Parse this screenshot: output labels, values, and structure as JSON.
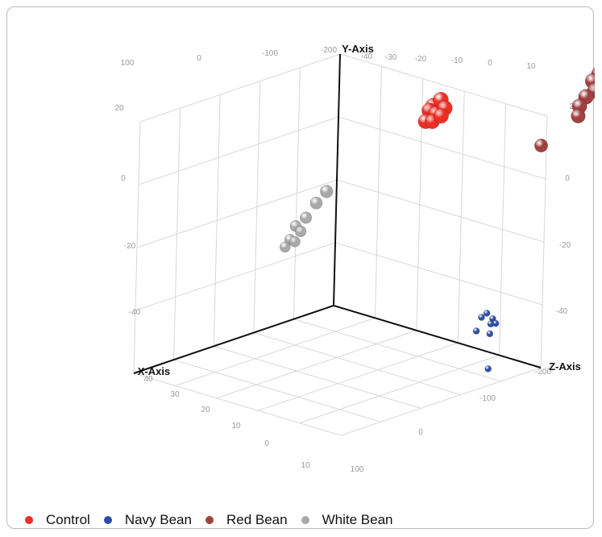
{
  "chart_data": {
    "type": "scatter",
    "projection": "3d",
    "axes": {
      "x": {
        "title": "X-Axis",
        "tick_labels": [
          "10",
          "0",
          "10",
          "20",
          "30",
          "40"
        ]
      },
      "y": {
        "title": "Y-Axis",
        "tick_labels": [
          "20",
          "0",
          "-20",
          "-40"
        ]
      },
      "z": {
        "title": "Z-Axis",
        "tick_labels": [
          "100",
          "0",
          "-100",
          "-200"
        ]
      },
      "back_top_tick_labels": [
        "100",
        "0",
        "-100",
        "-200",
        "-40",
        "-30",
        "-20",
        "-10",
        "0",
        "10"
      ],
      "side_tick_labels": [
        "20",
        "0",
        "-20",
        "-40"
      ]
    },
    "grid": true,
    "legend_position": "bottom-left",
    "series": [
      {
        "name": "Control",
        "color": "#ee2e24",
        "points": [
          {
            "x": 2,
            "y": 26,
            "z": 0
          },
          {
            "x": 0,
            "y": 27,
            "z": 1
          },
          {
            "x": 3,
            "y": 25,
            "z": -1
          },
          {
            "x": 1,
            "y": 23,
            "z": 2
          },
          {
            "x": -1,
            "y": 24,
            "z": 0
          },
          {
            "x": 4,
            "y": 22,
            "z": -2
          },
          {
            "x": 2,
            "y": 21,
            "z": 1
          },
          {
            "x": 0,
            "y": 22,
            "z": -1
          }
        ]
      },
      {
        "name": "Navy Bean",
        "color": "#2b4fa8",
        "points": [
          {
            "x": -5,
            "y": -40,
            "z": -75
          },
          {
            "x": -6,
            "y": -42,
            "z": -80
          },
          {
            "x": -4,
            "y": -41,
            "z": -72
          },
          {
            "x": -7,
            "y": -44,
            "z": -78
          },
          {
            "x": -5,
            "y": -43,
            "z": -85
          },
          {
            "x": -3,
            "y": -45,
            "z": -70
          },
          {
            "x": -6,
            "y": -47,
            "z": -74
          },
          {
            "x": -2,
            "y": -55,
            "z": -110
          }
        ]
      },
      {
        "name": "Red Bean",
        "color": "#a04040",
        "points": [
          {
            "x": -25,
            "y": 30,
            "z": -140
          },
          {
            "x": -24,
            "y": 28,
            "z": -135
          },
          {
            "x": -26,
            "y": 27,
            "z": -145
          },
          {
            "x": -23,
            "y": 26,
            "z": -150
          },
          {
            "x": -22,
            "y": 24,
            "z": -138
          },
          {
            "x": -20,
            "y": 22,
            "z": -142
          },
          {
            "x": -21,
            "y": 18,
            "z": -130
          },
          {
            "x": -15,
            "y": 10,
            "z": -100
          }
        ]
      },
      {
        "name": "White Bean",
        "color": "#a9a9a9",
        "points": [
          {
            "x": 22,
            "y": 5,
            "z": 60
          },
          {
            "x": 24,
            "y": 2,
            "z": 65
          },
          {
            "x": 26,
            "y": -2,
            "z": 70
          },
          {
            "x": 28,
            "y": -4,
            "z": 75
          },
          {
            "x": 27,
            "y": -6,
            "z": 72
          },
          {
            "x": 29,
            "y": -8,
            "z": 78
          },
          {
            "x": 30,
            "y": -10,
            "z": 80
          },
          {
            "x": 28,
            "y": -9,
            "z": 76
          }
        ]
      }
    ]
  }
}
